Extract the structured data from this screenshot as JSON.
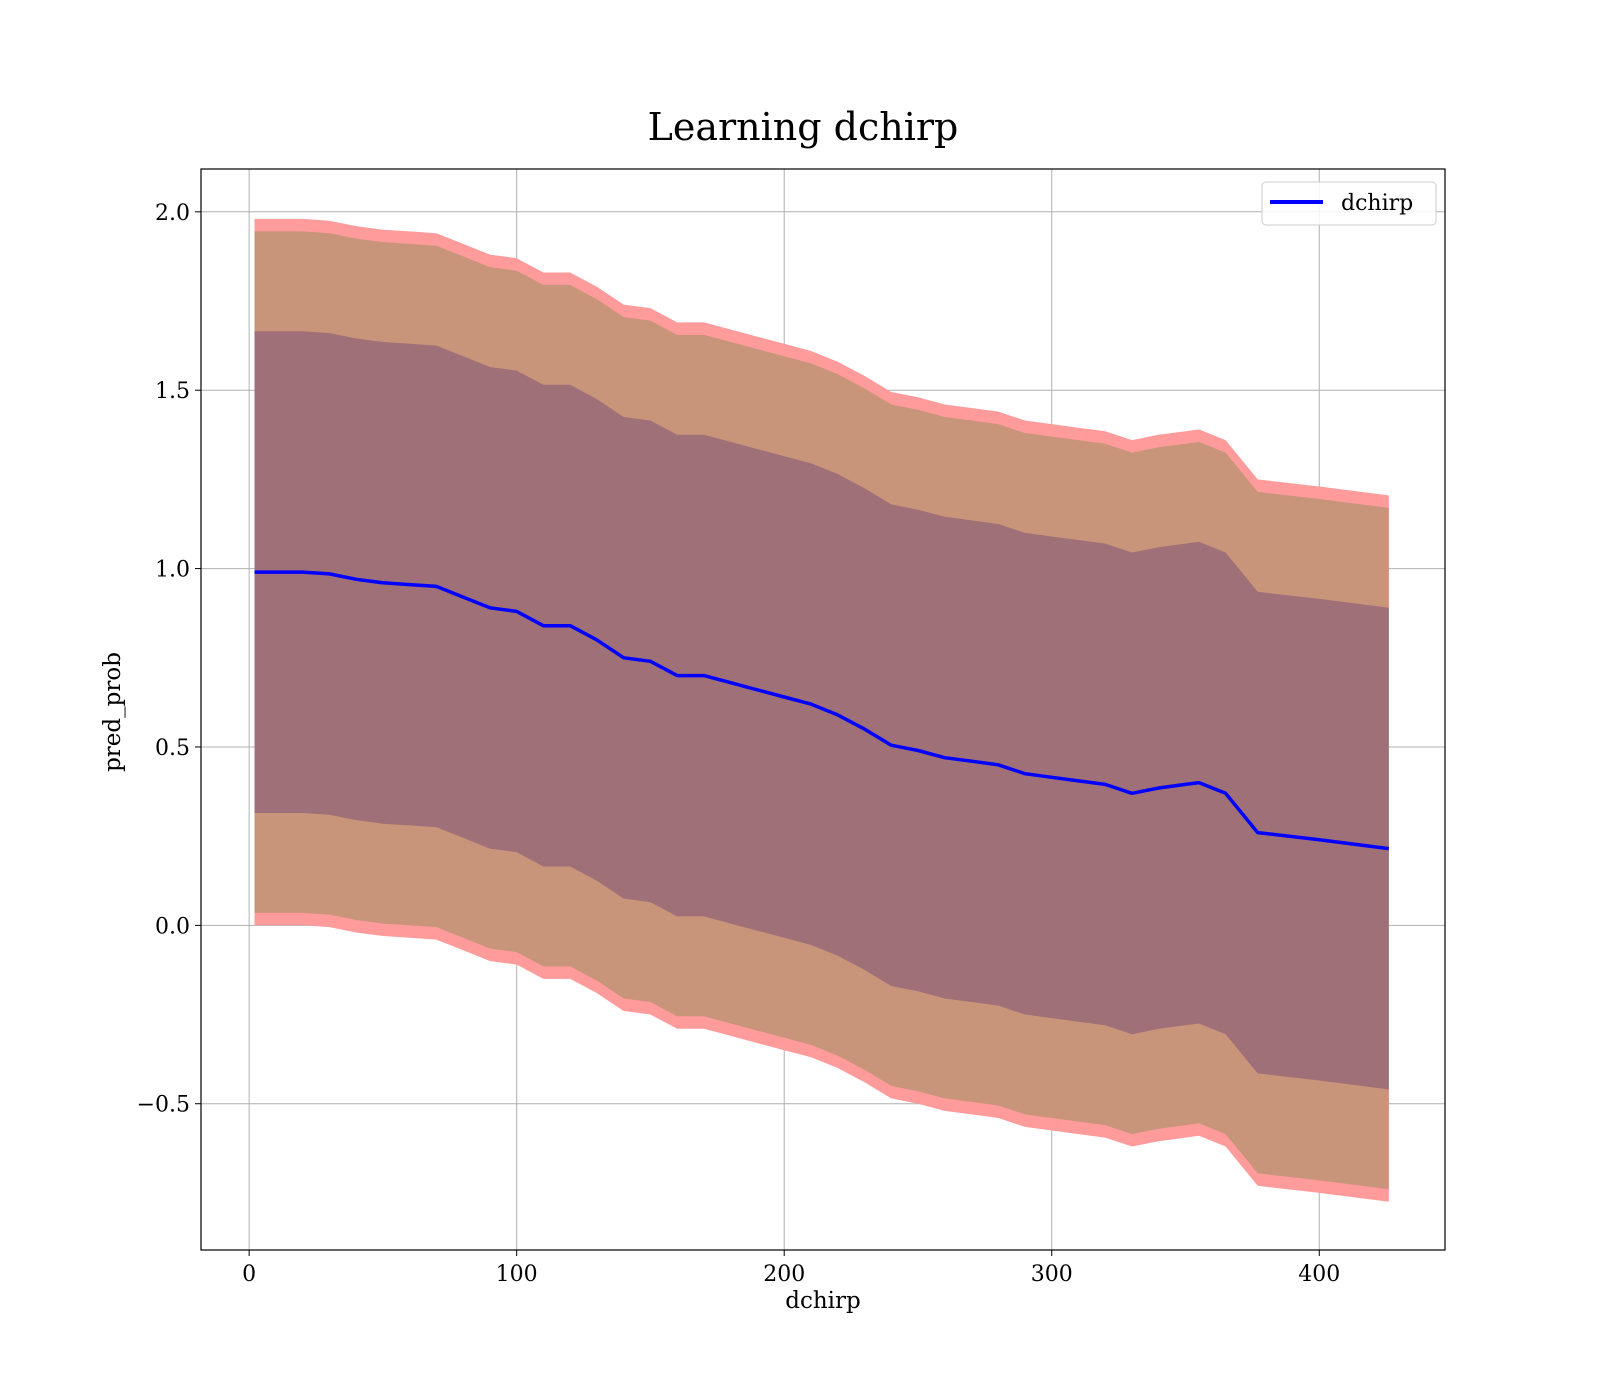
{
  "chart_data": {
    "type": "line",
    "title": "Learning dchirp",
    "xlabel": "dchirp",
    "ylabel": "pred_prob",
    "xlim": [
      -18,
      447
    ],
    "ylim": [
      -0.91,
      2.12
    ],
    "xticks": [
      0,
      100,
      200,
      300,
      400
    ],
    "yticks": [
      -0.5,
      0.0,
      0.5,
      1.0,
      1.5,
      2.0
    ],
    "ytick_labels": [
      "−0.5",
      "0.0",
      "0.5",
      "1.0",
      "1.5",
      "2.0"
    ],
    "grid": true,
    "legend_position": "top-right",
    "line_color": "#0000ff",
    "band_colors": {
      "outer": "#ff9b9b",
      "middle": "#c8947a",
      "inner": "#a07078"
    },
    "series": [
      {
        "name": "dchirp",
        "x": [
          2,
          10,
          20,
          30,
          40,
          50,
          60,
          70,
          80,
          90,
          100,
          110,
          120,
          130,
          140,
          150,
          160,
          170,
          180,
          190,
          200,
          210,
          220,
          230,
          240,
          250,
          260,
          270,
          280,
          290,
          300,
          310,
          320,
          330,
          340,
          350,
          355,
          365,
          377,
          400,
          426
        ],
        "y": [
          0.99,
          0.99,
          0.99,
          0.985,
          0.97,
          0.96,
          0.955,
          0.95,
          0.92,
          0.89,
          0.88,
          0.84,
          0.84,
          0.8,
          0.75,
          0.74,
          0.7,
          0.7,
          0.68,
          0.66,
          0.64,
          0.62,
          0.59,
          0.55,
          0.505,
          0.49,
          0.47,
          0.46,
          0.45,
          0.425,
          0.415,
          0.405,
          0.395,
          0.37,
          0.385,
          0.395,
          0.4,
          0.37,
          0.26,
          0.24,
          0.215
        ]
      }
    ],
    "bands": [
      {
        "level": "outer",
        "half_width": 0.99
      },
      {
        "level": "middle",
        "half_width": 0.955
      },
      {
        "level": "inner",
        "half_width": 0.675
      }
    ]
  }
}
